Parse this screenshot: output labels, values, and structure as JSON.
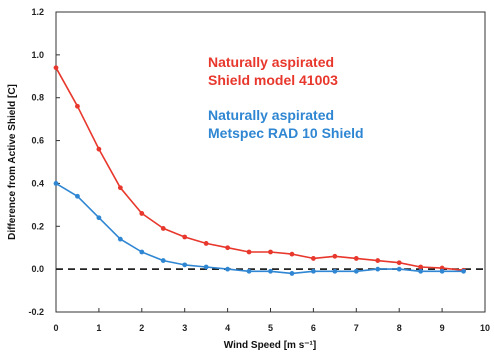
{
  "chart_data": {
    "type": "line",
    "xlabel": "Wind Speed [m s⁻¹]",
    "ylabel": "Difference from Active Shield [C]",
    "xlim": [
      0,
      10
    ],
    "ylim": [
      -0.2,
      1.2
    ],
    "x_ticks": [
      "0",
      "1",
      "2",
      "3",
      "4",
      "5",
      "6",
      "7",
      "8",
      "9",
      "10"
    ],
    "y_ticks": [
      "-0.2",
      "0.0",
      "0.2",
      "0.4",
      "0.6",
      "0.8",
      "1.0",
      "1.2"
    ],
    "grid": false,
    "zero_reference_line": "dashed",
    "series": [
      {
        "name_lines": [
          "Naturally aspirated",
          "Shield model 41003"
        ],
        "color": "#e8372c",
        "x": [
          0,
          0.5,
          1,
          1.5,
          2,
          2.5,
          3,
          3.5,
          4,
          4.5,
          5,
          5.5,
          6,
          6.5,
          7,
          7.5,
          8,
          8.5,
          9,
          9.5
        ],
        "y": [
          0.94,
          0.76,
          0.56,
          0.38,
          0.26,
          0.19,
          0.15,
          0.12,
          0.1,
          0.08,
          0.08,
          0.07,
          0.05,
          0.06,
          0.05,
          0.04,
          0.03,
          0.01,
          0.005,
          -0.005
        ]
      },
      {
        "name_lines": [
          "Naturally aspirated",
          "Metspec RAD 10 Shield"
        ],
        "color": "#2f86d2",
        "x": [
          0,
          0.5,
          1,
          1.5,
          2,
          2.5,
          3,
          3.5,
          4,
          4.5,
          5,
          5.5,
          6,
          6.5,
          7,
          7.5,
          8,
          8.5,
          9,
          9.5
        ],
        "y": [
          0.4,
          0.34,
          0.24,
          0.14,
          0.08,
          0.04,
          0.02,
          0.01,
          0.0,
          -0.01,
          -0.01,
          -0.02,
          -0.01,
          -0.01,
          -0.01,
          0.0,
          0.0,
          -0.01,
          -0.01,
          -0.01
        ]
      }
    ]
  }
}
